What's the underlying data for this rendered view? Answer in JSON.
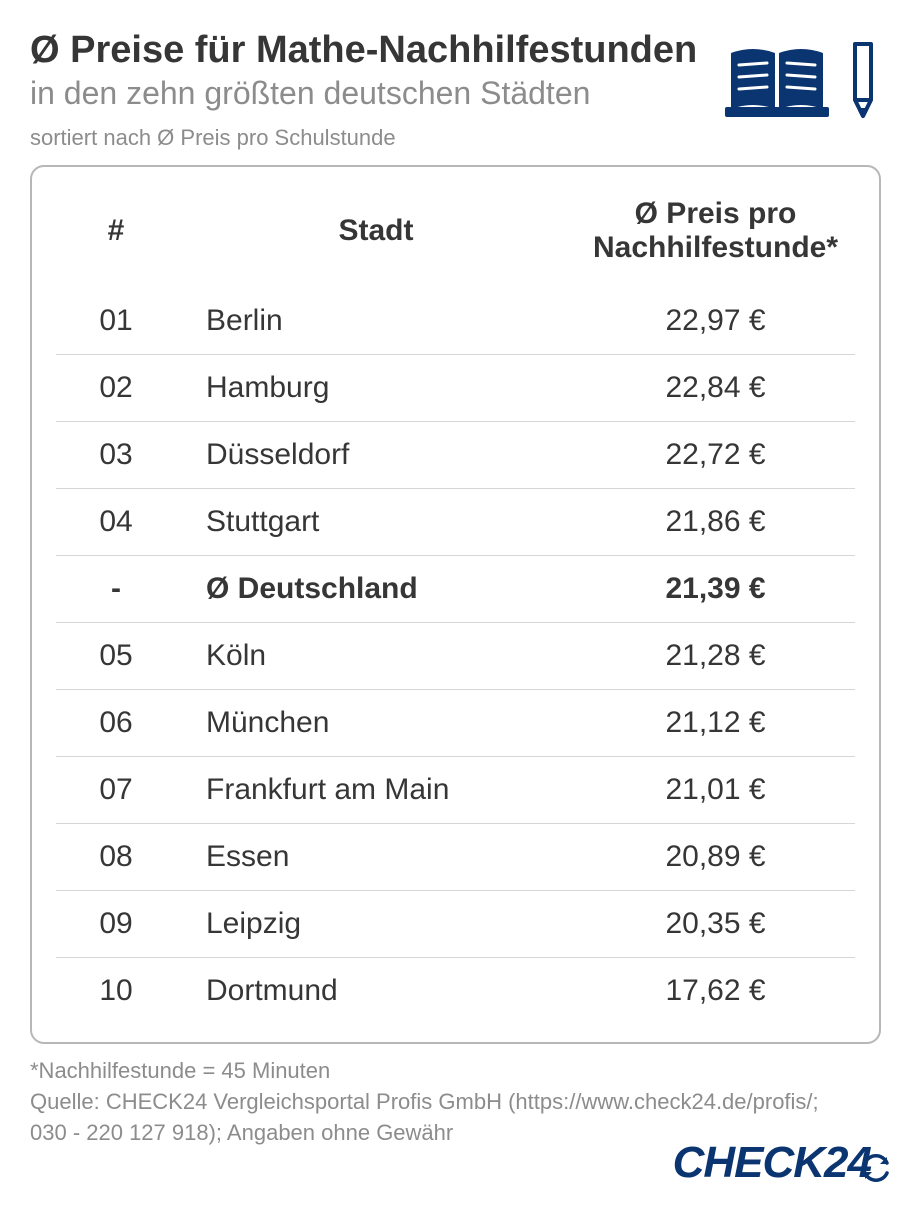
{
  "header": {
    "title": "Ø Preise für Mathe-Nachhilfestunden",
    "subtitle": "in den zehn größten deutschen Städten",
    "sort_note": "sortiert nach Ø Preis pro Schulstunde"
  },
  "colors": {
    "brand": "#0a3570",
    "text": "#363636",
    "muted": "#8c8c8c",
    "border": "#b7b7b7",
    "row_border": "#d6d6d6",
    "background": "#ffffff"
  },
  "table": {
    "columns": {
      "rank": "#",
      "city": "Stadt",
      "price_l1": "Ø Preis pro",
      "price_l2": "Nachhilfestunde*"
    },
    "rows": [
      {
        "rank": "01",
        "city": "Berlin",
        "price": "22,97 €",
        "bold": false
      },
      {
        "rank": "02",
        "city": "Hamburg",
        "price": "22,84 €",
        "bold": false
      },
      {
        "rank": "03",
        "city": "Düsseldorf",
        "price": "22,72 €",
        "bold": false
      },
      {
        "rank": "04",
        "city": "Stuttgart",
        "price": "21,86 €",
        "bold": false
      },
      {
        "rank": "-",
        "city": "Ø Deutschland",
        "price": "21,39 €",
        "bold": true
      },
      {
        "rank": "05",
        "city": "Köln",
        "price": "21,28 €",
        "bold": false
      },
      {
        "rank": "06",
        "city": "München",
        "price": "21,12 €",
        "bold": false
      },
      {
        "rank": "07",
        "city": "Frankfurt am Main",
        "price": "21,01 €",
        "bold": false
      },
      {
        "rank": "08",
        "city": "Essen",
        "price": "20,89 €",
        "bold": false
      },
      {
        "rank": "09",
        "city": "Leipzig",
        "price": "20,35 €",
        "bold": false
      },
      {
        "rank": "10",
        "city": "Dortmund",
        "price": "17,62 €",
        "bold": false
      }
    ]
  },
  "footnote": {
    "line1": "*Nachhilfestunde = 45 Minuten",
    "line2": "Quelle: CHECK24 Vergleichsportal Profis GmbH (https://www.check24.de/profis/;",
    "line3": "030 - 220 127 918); Angaben ohne Gewähr"
  },
  "logo_text": "CHECK24"
}
